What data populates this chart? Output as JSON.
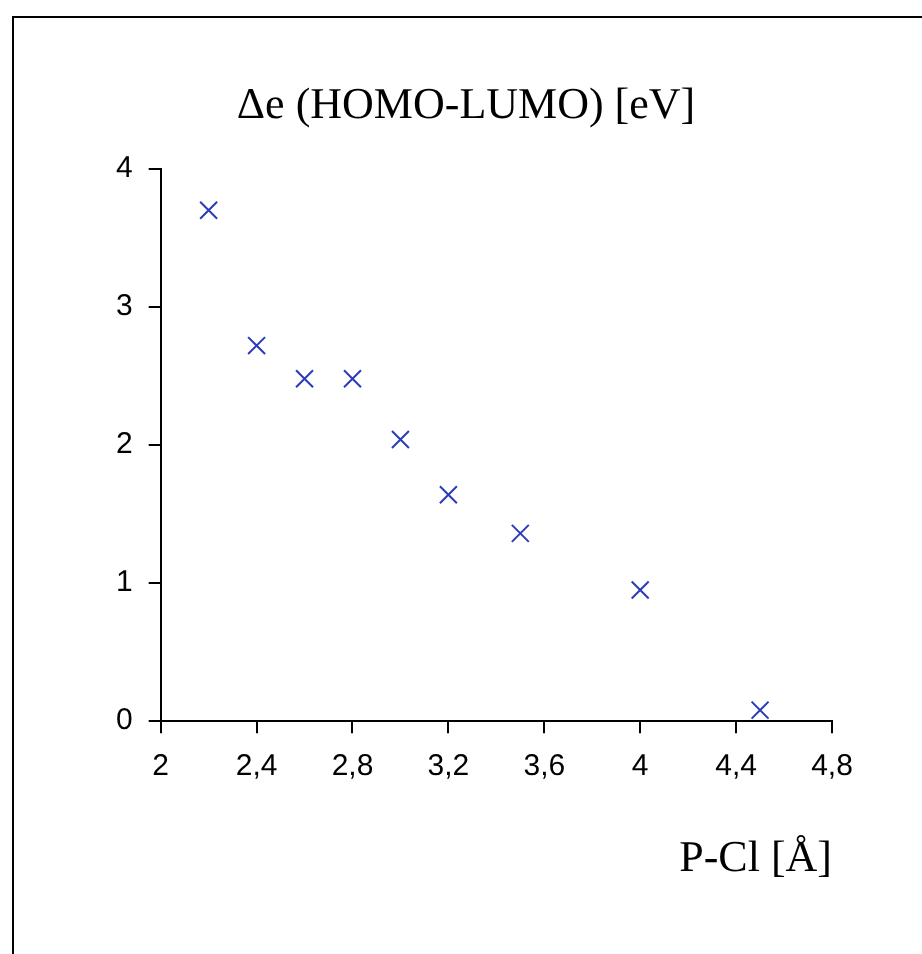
{
  "chart_data": {
    "type": "scatter",
    "title": "Δe (HOMO-LUMO) [eV]",
    "xlabel": "P-Cl [Å]",
    "x": [
      2.2,
      2.4,
      2.6,
      2.8,
      3.0,
      3.2,
      3.5,
      4.0,
      4.5
    ],
    "series": [
      {
        "color": "#2a3bb8",
        "values": [
          3.7,
          2.72,
          2.48,
          2.48,
          2.04,
          1.64,
          1.36,
          0.95,
          0.08
        ]
      }
    ],
    "xlim": [
      2,
      4.8
    ],
    "xticks": [
      2,
      {
        "value": 2.4,
        "label": "2,4"
      },
      {
        "value": 2.8,
        "label": "2,8"
      },
      {
        "value": 3.2,
        "label": "3,2"
      },
      {
        "value": 3.6,
        "label": "3,6"
      },
      4,
      {
        "value": 4.4,
        "label": "4,4"
      },
      {
        "value": 4.8,
        "label": "4,8"
      }
    ],
    "ylim": [
      0,
      4
    ],
    "yticks": [
      0,
      1,
      2,
      3,
      4
    ],
    "grid": false,
    "legend": false,
    "marker": "cross"
  }
}
